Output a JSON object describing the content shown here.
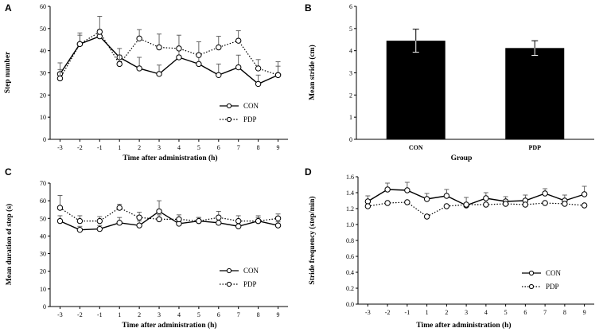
{
  "chart_data": [
    {
      "panel": "A",
      "type": "line",
      "xlabel": "Time after administration (h)",
      "ylabel": "Step number",
      "x": [
        -3,
        -2,
        -1,
        1,
        2,
        3,
        4,
        5,
        6,
        7,
        8,
        9
      ],
      "xticks": [
        "-3",
        "-2",
        "-1",
        "1",
        "2",
        "3",
        "4",
        "5",
        "6",
        "7",
        "8",
        "9"
      ],
      "ylim": [
        0,
        60
      ],
      "yticks": [
        "0",
        "10",
        "20",
        "30",
        "40",
        "50",
        "60"
      ],
      "legend_position": "bottom-right",
      "series": [
        {
          "name": "CON",
          "style": "solid",
          "values": [
            29.5,
            43,
            46.5,
            37,
            32,
            29.5,
            37,
            34,
            29,
            32.5,
            25,
            29
          ],
          "errors": [
            5,
            4,
            3,
            4,
            5,
            4,
            4,
            4,
            5,
            5.5,
            4,
            4
          ]
        },
        {
          "name": "PDP",
          "style": "dotted",
          "values": [
            27.5,
            43,
            48.5,
            34,
            45.5,
            41.5,
            41,
            38,
            41.5,
            44.5,
            32,
            29
          ],
          "errors": [
            4,
            5,
            7,
            4,
            4,
            6,
            6,
            6,
            5,
            4.5,
            4,
            6
          ]
        }
      ]
    },
    {
      "panel": "B",
      "type": "bar",
      "xlabel": "Group",
      "ylabel": "Mean stride (cm)",
      "categories": [
        "CON",
        "PDP"
      ],
      "ylim": [
        0,
        6
      ],
      "yticks": [
        "0",
        "1",
        "2",
        "3",
        "4",
        "5",
        "6"
      ],
      "values": [
        4.45,
        4.12
      ],
      "errors": [
        0.52,
        0.33
      ]
    },
    {
      "panel": "C",
      "type": "line",
      "xlabel": "Time after administration (h)",
      "ylabel": "Mean duration of step (s)",
      "x": [
        -3,
        -2,
        -1,
        1,
        2,
        3,
        4,
        5,
        6,
        7,
        8,
        9
      ],
      "xticks": [
        "-3",
        "-2",
        "-1",
        "1",
        "2",
        "3",
        "4",
        "5",
        "6",
        "7",
        "8",
        "9"
      ],
      "ylim": [
        0,
        70
      ],
      "yticks": [
        "0",
        "10",
        "20",
        "30",
        "40",
        "50",
        "60",
        "70"
      ],
      "legend_position": "bottom-right",
      "series": [
        {
          "name": "CON",
          "style": "solid",
          "values": [
            48.5,
            43.5,
            44,
            47.5,
            46,
            54,
            47,
            48.5,
            47.5,
            45.5,
            48.5,
            46
          ],
          "errors": [
            3,
            2,
            2,
            3,
            2.5,
            6,
            2.5,
            2,
            2.5,
            2.5,
            2,
            2
          ]
        },
        {
          "name": "PDP",
          "style": "dotted",
          "values": [
            56,
            48.5,
            48.5,
            56,
            50.5,
            49.5,
            49.5,
            48.5,
            50.5,
            48.5,
            48.5,
            50
          ],
          "errors": [
            7,
            3,
            2.5,
            2,
            3,
            2.5,
            2.5,
            2,
            3.5,
            3,
            3,
            2.5
          ]
        }
      ]
    },
    {
      "panel": "D",
      "type": "line",
      "xlabel": "Time after administration (h)",
      "ylabel": "Stride frequency (step/min)",
      "x": [
        -3,
        -2,
        -1,
        1,
        2,
        3,
        4,
        5,
        6,
        7,
        8,
        9
      ],
      "xticks": [
        "-3",
        "-2",
        "-1",
        "1",
        "2",
        "3",
        "4",
        "5",
        "6",
        "7",
        "8",
        "9"
      ],
      "ylim": [
        0,
        1.6
      ],
      "yticks": [
        "0.0",
        "0.2",
        "0.4",
        "0.6",
        "0.8",
        "1.0",
        "1.2",
        "1.4",
        "1.6"
      ],
      "legend_position": "bottom-right",
      "series": [
        {
          "name": "CON",
          "style": "solid",
          "values": [
            1.29,
            1.44,
            1.43,
            1.32,
            1.36,
            1.24,
            1.33,
            1.29,
            1.3,
            1.39,
            1.3,
            1.38
          ],
          "errors": [
            0.07,
            0.08,
            0.1,
            0.07,
            0.08,
            0.1,
            0.07,
            0.06,
            0.07,
            0.06,
            0.07,
            0.1
          ]
        },
        {
          "name": "PDP",
          "style": "dotted",
          "values": [
            1.23,
            1.27,
            1.28,
            1.1,
            1.23,
            1.25,
            1.25,
            1.26,
            1.25,
            1.27,
            1.26,
            1.24
          ]
        }
      ]
    }
  ]
}
